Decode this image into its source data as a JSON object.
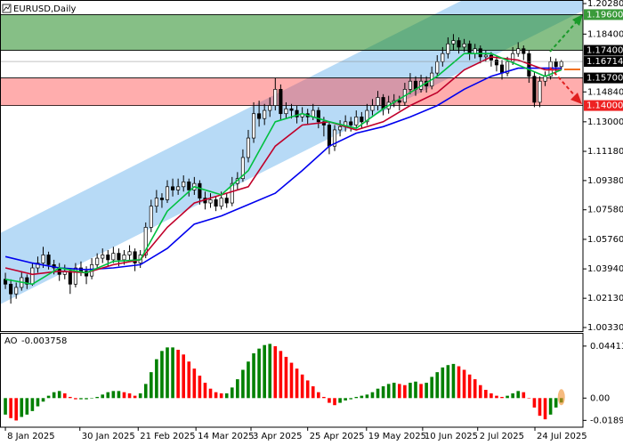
{
  "chart_data": [
    {
      "type": "candlestick",
      "title": "EURUSD,Daily",
      "xlim": [
        -1,
        107
      ],
      "xticks": [
        {
          "value": 0,
          "label": "8 Jan 2025"
        },
        {
          "value": 13.8,
          "label": "30 Jan 2025"
        },
        {
          "value": 24.6,
          "label": "21 Feb 2025"
        },
        {
          "value": 35.3,
          "label": "14 Mar 2025"
        },
        {
          "value": 45.5,
          "label": "3 Apr 2025"
        },
        {
          "value": 56,
          "label": "25 Apr 2025"
        },
        {
          "value": 66.9,
          "label": "19 May 2025"
        },
        {
          "value": 77.3,
          "label": "10 Jun 2025"
        },
        {
          "value": 87.5,
          "label": "2 Jul 2025"
        },
        {
          "value": 98.1,
          "label": "24 Jul 2025"
        }
      ],
      "ylim": [
        1.0011,
        1.205
      ],
      "yticks": [
        {
          "value": 1.2028,
          "label": "1.20280"
        },
        {
          "value": 1.184,
          "label": "1.18400"
        },
        {
          "value": 1.1484,
          "label": "1.14840"
        },
        {
          "value": 1.13,
          "label": "1.13000"
        },
        {
          "value": 1.1118,
          "label": "1.11180"
        },
        {
          "value": 1.0938,
          "label": "1.09380"
        },
        {
          "value": 1.0758,
          "label": "1.07580"
        },
        {
          "value": 1.0576,
          "label": "1.05760"
        },
        {
          "value": 1.0394,
          "label": "1.03940"
        },
        {
          "value": 1.0213,
          "label": "1.02130"
        },
        {
          "value": 1.0033,
          "label": "1.00330"
        }
      ],
      "up_color": "#ffffff",
      "down_color": "#000000",
      "ohlc": [
        [
          1.033,
          1.037,
          1.027,
          1.03
        ],
        [
          1.03,
          1.033,
          1.018,
          1.024
        ],
        [
          1.024,
          1.031,
          1.021,
          1.028
        ],
        [
          1.028,
          1.038,
          1.026,
          1.034
        ],
        [
          1.034,
          1.036,
          1.027,
          1.03
        ],
        [
          1.03,
          1.043,
          1.029,
          1.04
        ],
        [
          1.04,
          1.047,
          1.037,
          1.043
        ],
        [
          1.043,
          1.053,
          1.04,
          1.048
        ],
        [
          1.048,
          1.05,
          1.039,
          1.042
        ],
        [
          1.042,
          1.045,
          1.036,
          1.04
        ],
        [
          1.04,
          1.043,
          1.032,
          1.036
        ],
        [
          1.036,
          1.042,
          1.033,
          1.038
        ],
        [
          1.038,
          1.04,
          1.024,
          1.03
        ],
        [
          1.03,
          1.043,
          1.028,
          1.04
        ],
        [
          1.04,
          1.044,
          1.035,
          1.038
        ],
        [
          1.038,
          1.041,
          1.03,
          1.035
        ],
        [
          1.035,
          1.046,
          1.033,
          1.042
        ],
        [
          1.042,
          1.049,
          1.04,
          1.046
        ],
        [
          1.046,
          1.052,
          1.043,
          1.048
        ],
        [
          1.048,
          1.051,
          1.041,
          1.045
        ],
        [
          1.045,
          1.053,
          1.043,
          1.049
        ],
        [
          1.049,
          1.052,
          1.041,
          1.045
        ],
        [
          1.045,
          1.051,
          1.042,
          1.048
        ],
        [
          1.048,
          1.054,
          1.045,
          1.05
        ],
        [
          1.05,
          1.052,
          1.038,
          1.043
        ],
        [
          1.043,
          1.051,
          1.04,
          1.048
        ],
        [
          1.048,
          1.068,
          1.046,
          1.065
        ],
        [
          1.065,
          1.082,
          1.062,
          1.078
        ],
        [
          1.078,
          1.088,
          1.074,
          1.083
        ],
        [
          1.083,
          1.086,
          1.077,
          1.082
        ],
        [
          1.082,
          1.094,
          1.08,
          1.09
        ],
        [
          1.09,
          1.095,
          1.084,
          1.088
        ],
        [
          1.088,
          1.095,
          1.085,
          1.09
        ],
        [
          1.09,
          1.097,
          1.087,
          1.093
        ],
        [
          1.093,
          1.095,
          1.084,
          1.088
        ],
        [
          1.088,
          1.096,
          1.085,
          1.092
        ],
        [
          1.092,
          1.094,
          1.079,
          1.083
        ],
        [
          1.083,
          1.087,
          1.076,
          1.08
        ],
        [
          1.08,
          1.086,
          1.077,
          1.082
        ],
        [
          1.082,
          1.084,
          1.075,
          1.078
        ],
        [
          1.078,
          1.087,
          1.076,
          1.083
        ],
        [
          1.083,
          1.086,
          1.077,
          1.08
        ],
        [
          1.08,
          1.096,
          1.078,
          1.092
        ],
        [
          1.092,
          1.099,
          1.088,
          1.095
        ],
        [
          1.095,
          1.113,
          1.093,
          1.108
        ],
        [
          1.108,
          1.125,
          1.105,
          1.12
        ],
        [
          1.12,
          1.142,
          1.117,
          1.135
        ],
        [
          1.135,
          1.143,
          1.127,
          1.132
        ],
        [
          1.132,
          1.141,
          1.128,
          1.137
        ],
        [
          1.137,
          1.145,
          1.133,
          1.14
        ],
        [
          1.14,
          1.157,
          1.137,
          1.15
        ],
        [
          1.15,
          1.153,
          1.131,
          1.135
        ],
        [
          1.135,
          1.142,
          1.132,
          1.138
        ],
        [
          1.138,
          1.141,
          1.132,
          1.137
        ],
        [
          1.137,
          1.14,
          1.129,
          1.133
        ],
        [
          1.133,
          1.139,
          1.13,
          1.135
        ],
        [
          1.135,
          1.138,
          1.128,
          1.133
        ],
        [
          1.133,
          1.141,
          1.131,
          1.137
        ],
        [
          1.137,
          1.139,
          1.126,
          1.13
        ],
        [
          1.13,
          1.133,
          1.121,
          1.128
        ],
        [
          1.128,
          1.13,
          1.11,
          1.115
        ],
        [
          1.115,
          1.128,
          1.112,
          1.125
        ],
        [
          1.125,
          1.131,
          1.121,
          1.127
        ],
        [
          1.127,
          1.134,
          1.124,
          1.13
        ],
        [
          1.13,
          1.133,
          1.124,
          1.128
        ],
        [
          1.128,
          1.137,
          1.126,
          1.133
        ],
        [
          1.133,
          1.136,
          1.126,
          1.13
        ],
        [
          1.13,
          1.141,
          1.128,
          1.137
        ],
        [
          1.137,
          1.144,
          1.134,
          1.14
        ],
        [
          1.14,
          1.149,
          1.137,
          1.145
        ],
        [
          1.145,
          1.147,
          1.134,
          1.138
        ],
        [
          1.138,
          1.146,
          1.135,
          1.142
        ],
        [
          1.142,
          1.147,
          1.139,
          1.143
        ],
        [
          1.143,
          1.146,
          1.137,
          1.142
        ],
        [
          1.142,
          1.154,
          1.14,
          1.15
        ],
        [
          1.15,
          1.16,
          1.147,
          1.155
        ],
        [
          1.155,
          1.158,
          1.146,
          1.15
        ],
        [
          1.15,
          1.159,
          1.148,
          1.155
        ],
        [
          1.155,
          1.158,
          1.148,
          1.152
        ],
        [
          1.152,
          1.164,
          1.15,
          1.16
        ],
        [
          1.16,
          1.171,
          1.158,
          1.167
        ],
        [
          1.167,
          1.176,
          1.164,
          1.172
        ],
        [
          1.172,
          1.182,
          1.169,
          1.178
        ],
        [
          1.178,
          1.184,
          1.174,
          1.18
        ],
        [
          1.18,
          1.182,
          1.172,
          1.176
        ],
        [
          1.176,
          1.181,
          1.173,
          1.178
        ],
        [
          1.178,
          1.18,
          1.168,
          1.172
        ],
        [
          1.172,
          1.178,
          1.169,
          1.175
        ],
        [
          1.175,
          1.177,
          1.166,
          1.17
        ],
        [
          1.17,
          1.174,
          1.167,
          1.171
        ],
        [
          1.171,
          1.173,
          1.164,
          1.168
        ],
        [
          1.168,
          1.171,
          1.161,
          1.165
        ],
        [
          1.165,
          1.168,
          1.156,
          1.16
        ],
        [
          1.16,
          1.17,
          1.158,
          1.167
        ],
        [
          1.167,
          1.176,
          1.165,
          1.172
        ],
        [
          1.172,
          1.179,
          1.17,
          1.175
        ],
        [
          1.175,
          1.177,
          1.168,
          1.172
        ],
        [
          1.172,
          1.174,
          1.154,
          1.158
        ],
        [
          1.158,
          1.161,
          1.139,
          1.142
        ],
        [
          1.142,
          1.158,
          1.139,
          1.155
        ],
        [
          1.155,
          1.161,
          1.152,
          1.158
        ],
        [
          1.158,
          1.17,
          1.156,
          1.167
        ],
        [
          1.167,
          1.169,
          1.16,
          1.164
        ],
        [
          1.164,
          1.168,
          1.162,
          1.167
        ]
      ],
      "line_x": [
        0,
        5,
        10,
        15,
        20,
        25,
        30,
        35,
        40,
        45,
        50,
        55,
        60,
        65,
        70,
        75,
        80,
        85,
        90,
        95,
        100,
        103
      ],
      "lines": [
        {
          "color": "#0000ee",
          "values": [
            1.047,
            1.043,
            1.04,
            1.039,
            1.04,
            1.042,
            1.052,
            1.067,
            1.072,
            1.079,
            1.086,
            1.1,
            1.115,
            1.123,
            1.127,
            1.133,
            1.14,
            1.15,
            1.158,
            1.163,
            1.163,
            1.163
          ]
        },
        {
          "color": "#c0002a",
          "values": [
            1.04,
            1.036,
            1.038,
            1.037,
            1.042,
            1.045,
            1.065,
            1.08,
            1.085,
            1.09,
            1.115,
            1.128,
            1.13,
            1.125,
            1.13,
            1.14,
            1.148,
            1.162,
            1.17,
            1.168,
            1.162,
            1.162
          ]
        },
        {
          "color": "#00c040",
          "values": [
            1.033,
            1.03,
            1.04,
            1.037,
            1.044,
            1.045,
            1.075,
            1.09,
            1.085,
            1.1,
            1.13,
            1.135,
            1.13,
            1.126,
            1.138,
            1.148,
            1.158,
            1.172,
            1.172,
            1.165,
            1.158,
            1.162
          ]
        }
      ],
      "zones": [
        {
          "top": {
            "value": 1.196,
            "label": "1.19600"
          },
          "bottom": {
            "value": 1.174,
            "label": "1.17400"
          },
          "color": "rgba(34,139,34,0.55)",
          "top_label_color": "#3a9a3a",
          "bottom_label_color": "#000000"
        },
        {
          "top": {
            "value": 1.157,
            "label": "1.15700"
          },
          "bottom": {
            "value": 1.14,
            "label": "1.14000"
          },
          "color": "rgba(255,60,60,0.42)",
          "top_label_color": "#000000",
          "bottom_label_color": "#ee2222"
        }
      ],
      "last_price": {
        "value": 1.16714,
        "label": "1.16714"
      }
    },
    {
      "type": "bar",
      "name": "AO",
      "ylim": [
        -0.0247,
        0.0546
      ],
      "yticks": [
        0.044131,
        {
          "value": 0,
          "label": "0.00"
        },
        -0.01891
      ],
      "up_color": "#008000",
      "down_color": "#ff0000",
      "values": [
        -0.014,
        -0.017,
        -0.019,
        -0.016,
        -0.014,
        -0.011,
        -0.007,
        -0.003,
        0.002,
        0.005,
        0.006,
        0.004,
        0.001,
        -0.001,
        -0.001,
        -0.001,
        0.0,
        0.001,
        0.003,
        0.005,
        0.006,
        0.006,
        0.005,
        0.004,
        0.002,
        0.004,
        0.012,
        0.022,
        0.033,
        0.04,
        0.043,
        0.043,
        0.041,
        0.037,
        0.031,
        0.025,
        0.019,
        0.013,
        0.008,
        0.005,
        0.004,
        0.004,
        0.009,
        0.016,
        0.024,
        0.031,
        0.038,
        0.042,
        0.045,
        0.046,
        0.044,
        0.04,
        0.035,
        0.03,
        0.025,
        0.02,
        0.015,
        0.01,
        0.005,
        0.001,
        -0.004,
        -0.006,
        -0.004,
        -0.002,
        -0.001,
        0.001,
        0.002,
        0.003,
        0.005,
        0.008,
        0.01,
        0.012,
        0.013,
        0.012,
        0.011,
        0.013,
        0.014,
        0.012,
        0.013,
        0.018,
        0.022,
        0.026,
        0.028,
        0.029,
        0.027,
        0.024,
        0.02,
        0.016,
        0.011,
        0.007,
        0.004,
        0.002,
        0.001,
        0.002,
        0.004,
        0.006,
        0.005,
        0.0,
        -0.008,
        -0.015,
        -0.018,
        -0.014,
        -0.008,
        -0.003758
      ]
    }
  ]
}
